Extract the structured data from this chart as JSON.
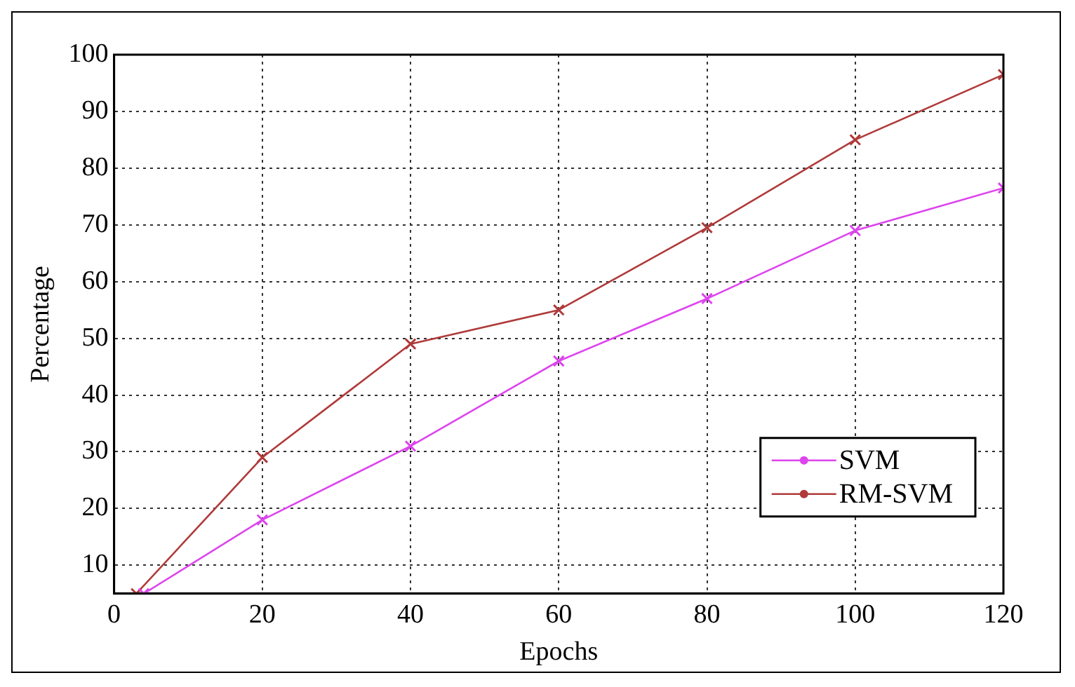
{
  "chart_data": {
    "type": "line",
    "xlabel": "Epochs",
    "ylabel": "Percentage",
    "xlim": [
      0,
      120
    ],
    "xticks": [
      0,
      20,
      40,
      60,
      80,
      100,
      120
    ],
    "ylim": [
      5,
      100
    ],
    "yticks": [
      10,
      20,
      30,
      40,
      50,
      60,
      70,
      80,
      90,
      100
    ],
    "grid": true,
    "legend": "bottom right",
    "marker": "cross",
    "line_style": "solid",
    "series": [
      {
        "name": "SVM",
        "color": "#dd44ee",
        "x": [
          4,
          20,
          40,
          60,
          80,
          100,
          120
        ],
        "values": [
          5,
          18,
          31,
          46,
          57,
          69,
          76.5
        ]
      },
      {
        "name": "RM-SVM",
        "color": "#b03a3a",
        "x": [
          3,
          20,
          40,
          60,
          80,
          100,
          120
        ],
        "values": [
          5,
          29,
          49,
          55,
          69.5,
          85,
          96.5
        ]
      }
    ]
  }
}
